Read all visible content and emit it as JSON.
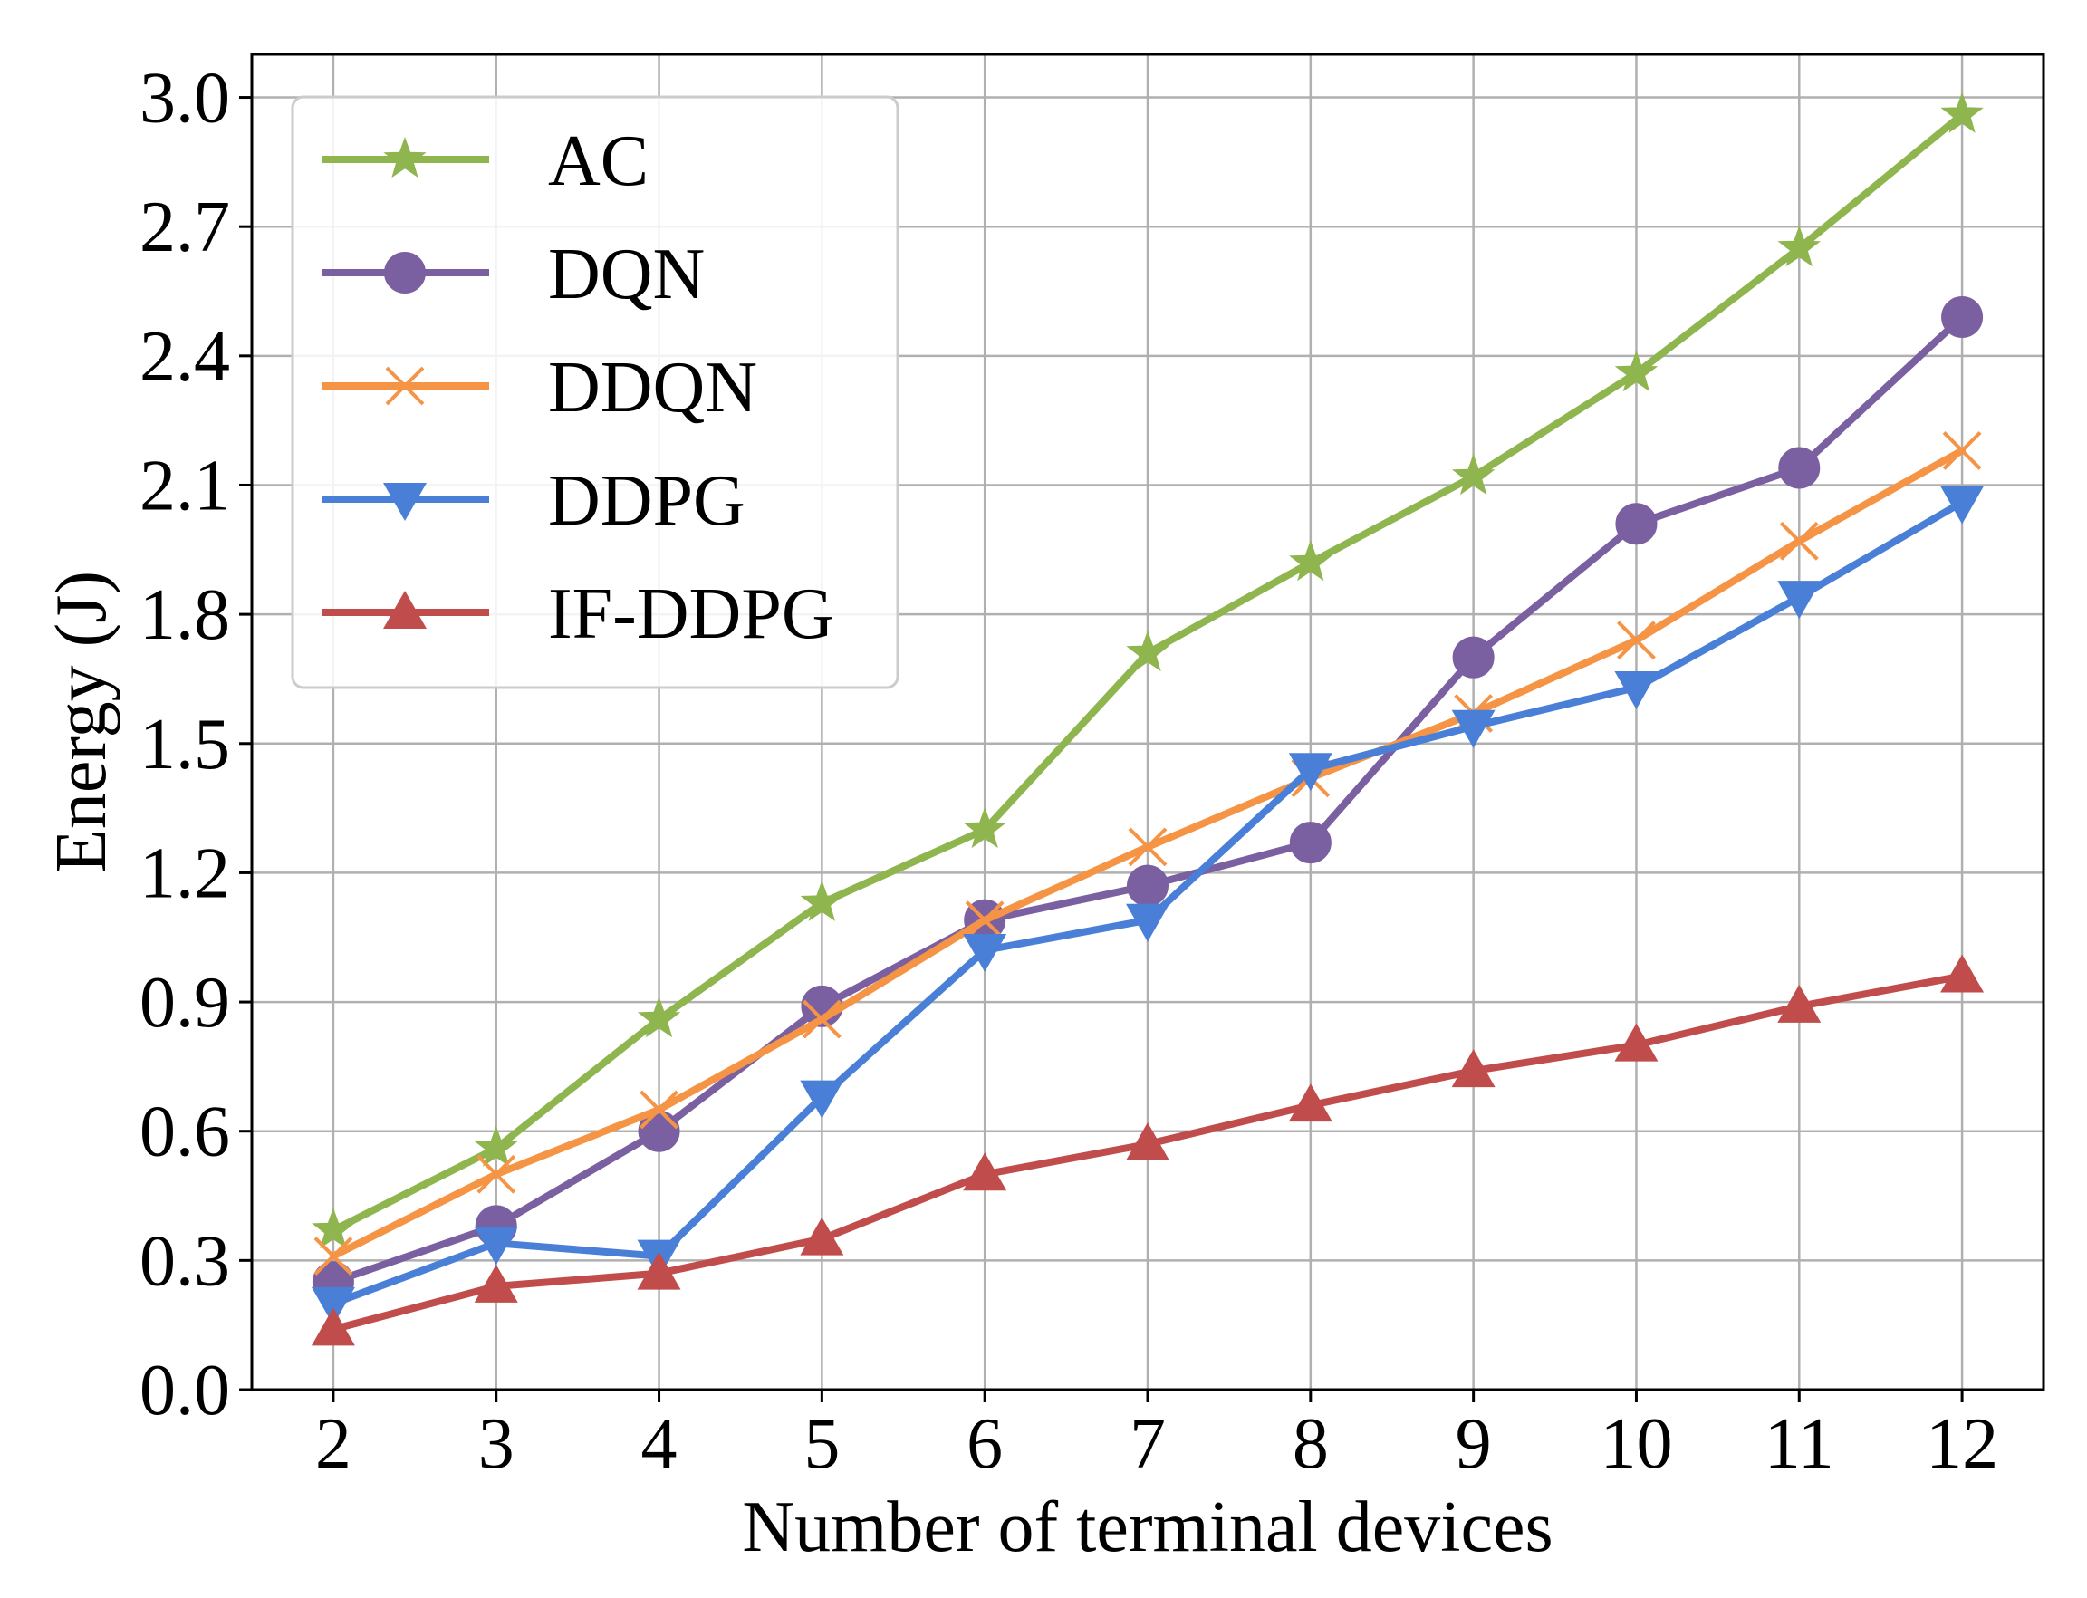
{
  "chart_data": {
    "type": "line",
    "title": "",
    "xlabel": "Number of terminal devices",
    "ylabel": "Energy (J)",
    "x": [
      2,
      3,
      4,
      5,
      6,
      7,
      8,
      9,
      10,
      11,
      12
    ],
    "x_tick_labels": [
      "2",
      "3",
      "4",
      "5",
      "6",
      "7",
      "8",
      "9",
      "10",
      "11",
      "12"
    ],
    "y_ticks": [
      0.0,
      0.3,
      0.6,
      0.9,
      1.2,
      1.5,
      1.8,
      2.1,
      2.4,
      2.7,
      3.0
    ],
    "y_tick_labels": [
      "0.0",
      "0.3",
      "0.6",
      "0.9",
      "1.2",
      "1.5",
      "1.8",
      "2.1",
      "2.4",
      "2.7",
      "3.0"
    ],
    "xlim": [
      1.5,
      12.5
    ],
    "ylim": [
      0.0,
      3.1
    ],
    "grid": true,
    "legend_position": "top-left",
    "series": [
      {
        "name": "AC",
        "color": "#8fb54f",
        "marker": "star",
        "values": [
          0.37,
          0.56,
          0.86,
          1.13,
          1.3,
          1.71,
          1.92,
          2.12,
          2.36,
          2.65,
          2.96
        ]
      },
      {
        "name": "DQN",
        "color": "#7b60a1",
        "marker": "circle",
        "values": [
          0.25,
          0.38,
          0.6,
          0.89,
          1.09,
          1.17,
          1.27,
          1.7,
          2.01,
          2.14,
          2.49
        ]
      },
      {
        "name": "DDQN",
        "color": "#f59445",
        "marker": "x",
        "values": [
          0.31,
          0.5,
          0.65,
          0.86,
          1.09,
          1.26,
          1.42,
          1.57,
          1.74,
          1.97,
          2.18
        ]
      },
      {
        "name": "DDPG",
        "color": "#4a7fd8",
        "marker": "triangle-down",
        "values": [
          0.2,
          0.34,
          0.31,
          0.68,
          1.02,
          1.09,
          1.44,
          1.54,
          1.63,
          1.84,
          2.06
        ]
      },
      {
        "name": "IF-DDPG",
        "color": "#c04d4b",
        "marker": "triangle-up",
        "values": [
          0.14,
          0.24,
          0.27,
          0.35,
          0.5,
          0.57,
          0.66,
          0.74,
          0.8,
          0.89,
          0.96
        ]
      }
    ]
  }
}
